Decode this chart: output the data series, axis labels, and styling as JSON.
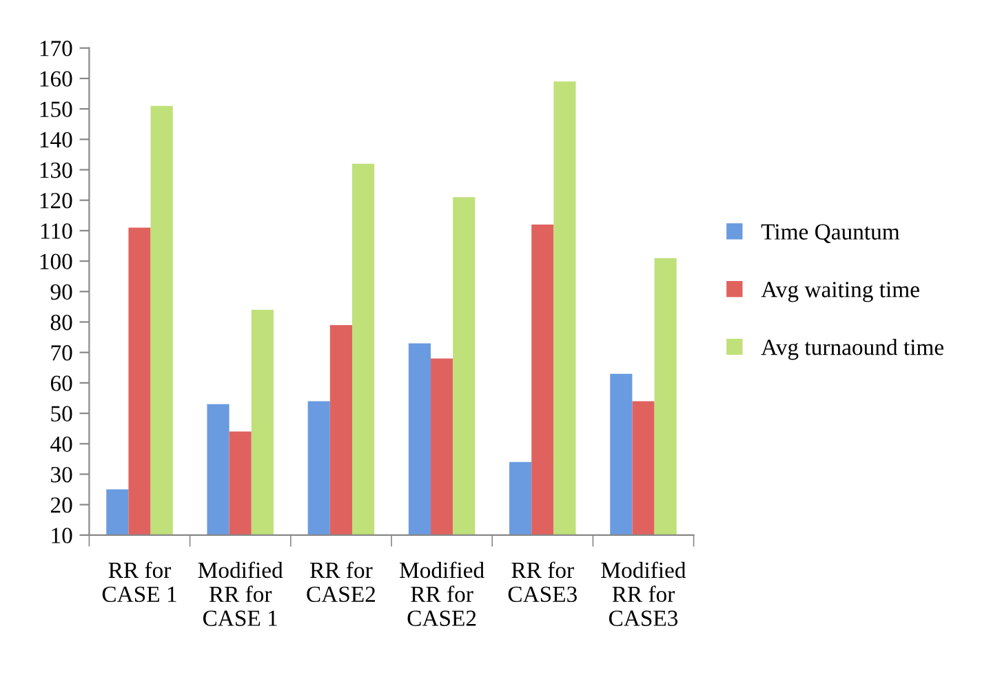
{
  "chart_data": {
    "type": "bar",
    "categories": [
      "RR for\nCASE 1",
      "Modified\nRR for\nCASE 1",
      "RR for\nCASE2",
      "Modified\nRR for\nCASE2",
      "RR for\nCASE3",
      "Modified\nRR for\nCASE3"
    ],
    "series": [
      {
        "name": "Time Qauntum",
        "color": "#6a9be0",
        "values": [
          25,
          53,
          54,
          73,
          34,
          63
        ]
      },
      {
        "name": "Avg waiting time",
        "color": "#e0625e",
        "values": [
          111,
          44,
          79,
          68,
          112,
          54
        ]
      },
      {
        "name": "Avg turnaound time",
        "color": "#c0e07a",
        "values": [
          151,
          84,
          132,
          121,
          159,
          101
        ]
      }
    ],
    "ylim": [
      10,
      170
    ],
    "yticks": [
      10,
      20,
      30,
      40,
      50,
      60,
      70,
      80,
      90,
      100,
      110,
      120,
      130,
      140,
      150,
      160,
      170
    ],
    "grid": false,
    "legend": "right"
  }
}
